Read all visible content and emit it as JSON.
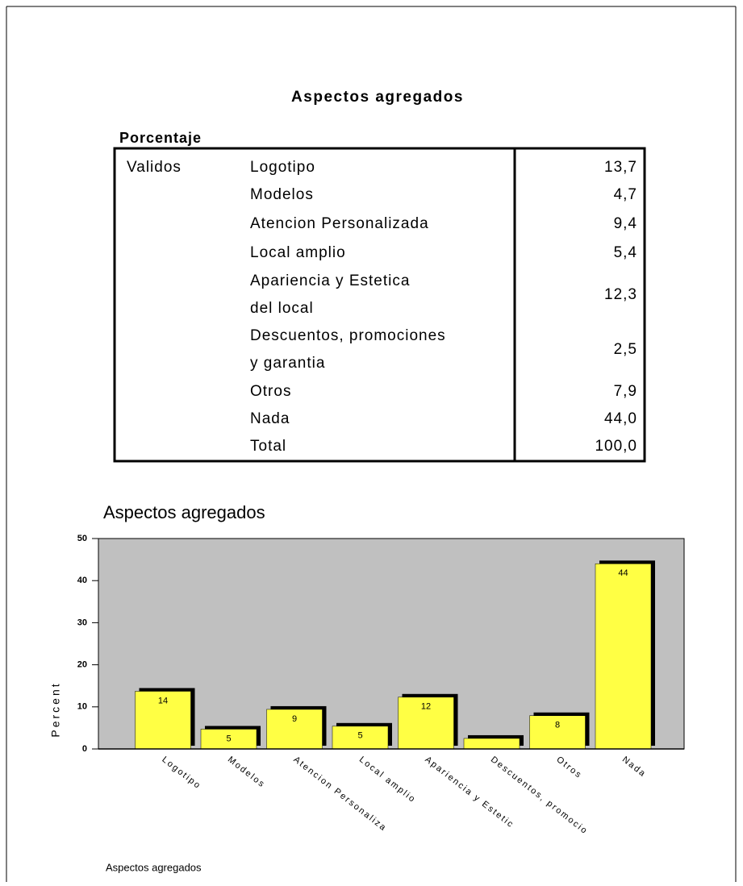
{
  "header": {
    "title": "Aspectos agregados",
    "subtitle": "Porcentaje"
  },
  "table": {
    "group": "Validos",
    "rows": [
      [
        "Logotipo",
        "13,7"
      ],
      [
        "Modelos",
        "4,7"
      ],
      [
        "Atencion Personalizada",
        "9,4"
      ],
      [
        "Local amplio",
        "5,4"
      ],
      [
        "Apariencia y Estetica del local",
        "12,3"
      ],
      [
        "Descuentos, promociones y garantia",
        "2,5"
      ],
      [
        "Otros",
        "7,9"
      ],
      [
        "Nada",
        "44,0"
      ],
      [
        "Total",
        "100,0"
      ]
    ]
  },
  "chart_data": {
    "type": "bar",
    "title": "Aspectos agregados",
    "x_label": "Aspectos agregados",
    "y_label": "Percent",
    "categories": [
      "Logotipo",
      "Modelos",
      "Atencion Personaliza",
      "Local amplio",
      "Apariencia y Estetic",
      "Descuentos, promocio",
      "Otros",
      "Nada"
    ],
    "values": [
      13.7,
      4.7,
      9.4,
      5.4,
      12.3,
      2.5,
      7.9,
      44.0
    ],
    "value_labels": [
      "14",
      "5",
      "9",
      "5",
      "12",
      null,
      "8",
      "44"
    ],
    "color": "#ffff44",
    "ylim": [
      0,
      50
    ],
    "yticks": [
      0,
      10,
      20,
      30,
      40,
      50
    ],
    "grid": false
  }
}
